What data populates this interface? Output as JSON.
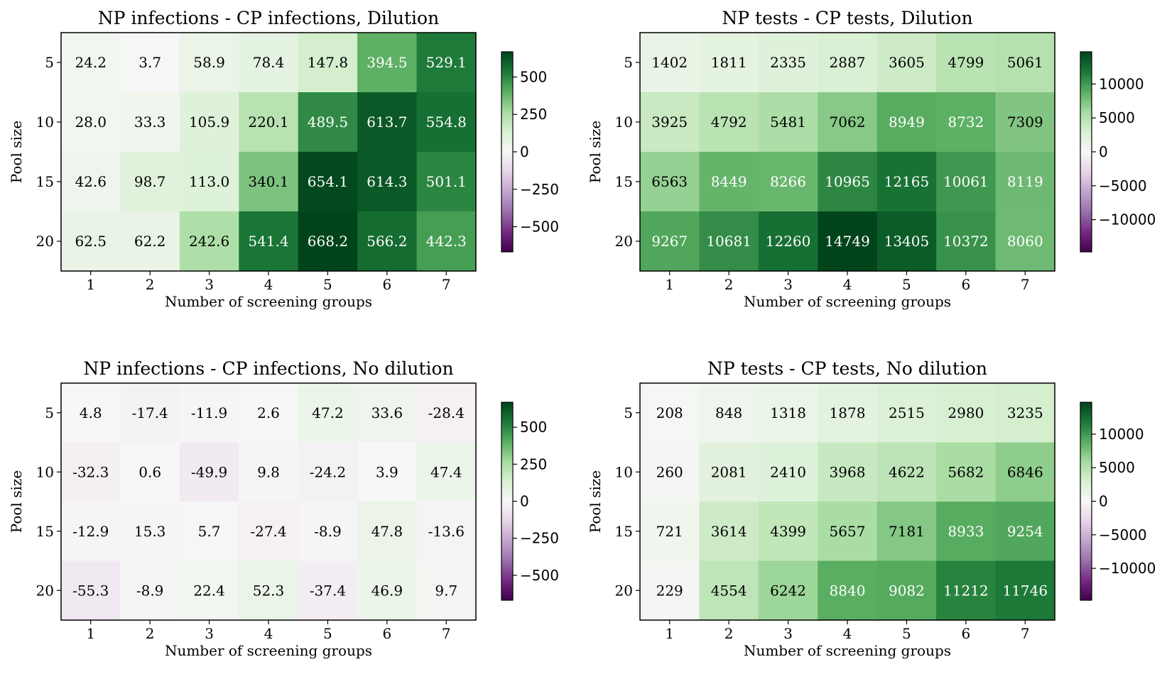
{
  "chart_data": [
    {
      "type": "heatmap",
      "title": "NP infections - CP infections, Dilution",
      "xlabel": "Number of screening groups",
      "ylabel": "Pool size",
      "x_categories": [
        "1",
        "2",
        "3",
        "4",
        "5",
        "6",
        "7"
      ],
      "y_categories": [
        "5",
        "10",
        "15",
        "20"
      ],
      "values": [
        [
          24.2,
          3.7,
          58.9,
          78.4,
          147.8,
          394.5,
          529.1
        ],
        [
          28.0,
          33.3,
          105.9,
          220.1,
          489.5,
          613.7,
          554.8
        ],
        [
          42.6,
          98.7,
          113.0,
          340.1,
          654.1,
          614.3,
          501.1
        ],
        [
          62.5,
          62.2,
          242.6,
          541.4,
          668.2,
          566.2,
          442.3
        ]
      ],
      "labels": [
        [
          "24.2",
          "3.7",
          "58.9",
          "78.4",
          "147.8",
          "394.5",
          "529.1"
        ],
        [
          "28.0",
          "33.3",
          "105.9",
          "220.1",
          "489.5",
          "613.7",
          "554.8"
        ],
        [
          "42.6",
          "98.7",
          "113.0",
          "340.1",
          "654.1",
          "614.3",
          "501.1"
        ],
        [
          "62.5",
          "62.2",
          "242.6",
          "541.4",
          "668.2",
          "566.2",
          "442.3"
        ]
      ],
      "colorscale": "PRGn",
      "vmin": -668.2,
      "vmax": 668.2,
      "colorbar_ticks": [
        500,
        250,
        0,
        -250,
        -500
      ],
      "colorbar_tick_labels": [
        "500",
        "250",
        "0",
        "−250",
        "−500"
      ]
    },
    {
      "type": "heatmap",
      "title": "NP tests - CP tests, Dilution",
      "xlabel": "Number of screening groups",
      "ylabel": "Pool size",
      "x_categories": [
        "1",
        "2",
        "3",
        "4",
        "5",
        "6",
        "7"
      ],
      "y_categories": [
        "5",
        "10",
        "15",
        "20"
      ],
      "values": [
        [
          1402,
          1811,
          2335,
          2887,
          3605,
          4799,
          5061
        ],
        [
          3925,
          4792,
          5481,
          7062,
          8949,
          8732,
          7309
        ],
        [
          6563,
          8449,
          8266,
          10965,
          12165,
          10061,
          8119
        ],
        [
          9267,
          10681,
          12260,
          14749,
          13405,
          10372,
          8060
        ]
      ],
      "labels": [
        [
          "1402",
          "1811",
          "2335",
          "2887",
          "3605",
          "4799",
          "5061"
        ],
        [
          "3925",
          "4792",
          "5481",
          "7062",
          "8949",
          "8732",
          "7309"
        ],
        [
          "6563",
          "8449",
          "8266",
          "10965",
          "12165",
          "10061",
          "8119"
        ],
        [
          "9267",
          "10681",
          "12260",
          "14749",
          "13405",
          "10372",
          "8060"
        ]
      ],
      "colorscale": "PRGn",
      "vmin": -14749,
      "vmax": 14749,
      "colorbar_ticks": [
        10000,
        5000,
        0,
        -5000,
        -10000
      ],
      "colorbar_tick_labels": [
        "10000",
        "5000",
        "0",
        "−5000",
        "−10000"
      ]
    },
    {
      "type": "heatmap",
      "title": "NP infections - CP infections, No dilution",
      "xlabel": "Number of screening groups",
      "ylabel": "Pool size",
      "x_categories": [
        "1",
        "2",
        "3",
        "4",
        "5",
        "6",
        "7"
      ],
      "y_categories": [
        "5",
        "10",
        "15",
        "20"
      ],
      "values": [
        [
          4.8,
          -17.4,
          -11.9,
          2.6,
          47.2,
          33.6,
          -28.4
        ],
        [
          -32.3,
          0.6,
          -49.9,
          9.8,
          -24.2,
          3.9,
          47.4
        ],
        [
          -12.9,
          15.3,
          5.7,
          -27.4,
          -8.9,
          47.8,
          -13.6
        ],
        [
          -55.3,
          -8.9,
          22.4,
          52.3,
          -37.4,
          46.9,
          9.7
        ]
      ],
      "labels": [
        [
          "4.8",
          "-17.4",
          "-11.9",
          "2.6",
          "47.2",
          "33.6",
          "-28.4"
        ],
        [
          "-32.3",
          "0.6",
          "-49.9",
          "9.8",
          "-24.2",
          "3.9",
          "47.4"
        ],
        [
          "-12.9",
          "15.3",
          "5.7",
          "-27.4",
          "-8.9",
          "47.8",
          "-13.6"
        ],
        [
          "-55.3",
          "-8.9",
          "22.4",
          "52.3",
          "-37.4",
          "46.9",
          "9.7"
        ]
      ],
      "colorscale": "PRGn",
      "vmin": -668.2,
      "vmax": 668.2,
      "colorbar_ticks": [
        500,
        250,
        0,
        -250,
        -500
      ],
      "colorbar_tick_labels": [
        "500",
        "250",
        "0",
        "−250",
        "−500"
      ]
    },
    {
      "type": "heatmap",
      "title": "NP tests - CP tests, No dilution",
      "xlabel": "Number of screening groups",
      "ylabel": "Pool size",
      "x_categories": [
        "1",
        "2",
        "3",
        "4",
        "5",
        "6",
        "7"
      ],
      "y_categories": [
        "5",
        "10",
        "15",
        "20"
      ],
      "values": [
        [
          208,
          848,
          1318,
          1878,
          2515,
          2980,
          3235
        ],
        [
          260,
          2081,
          2410,
          3968,
          4622,
          5682,
          6846
        ],
        [
          721,
          3614,
          4399,
          5657,
          7181,
          8933,
          9254
        ],
        [
          229,
          4554,
          6242,
          8840,
          9082,
          11212,
          11746
        ]
      ],
      "labels": [
        [
          "208",
          "848",
          "1318",
          "1878",
          "2515",
          "2980",
          "3235"
        ],
        [
          "260",
          "2081",
          "2410",
          "3968",
          "4622",
          "5682",
          "6846"
        ],
        [
          "721",
          "3614",
          "4399",
          "5657",
          "7181",
          "8933",
          "9254"
        ],
        [
          "229",
          "4554",
          "6242",
          "8840",
          "9082",
          "11212",
          "11746"
        ]
      ],
      "colorscale": "PRGn",
      "vmin": -14749,
      "vmax": 14749,
      "colorbar_ticks": [
        10000,
        5000,
        0,
        -5000,
        -10000
      ],
      "colorbar_tick_labels": [
        "10000",
        "5000",
        "0",
        "−5000",
        "−10000"
      ]
    }
  ]
}
